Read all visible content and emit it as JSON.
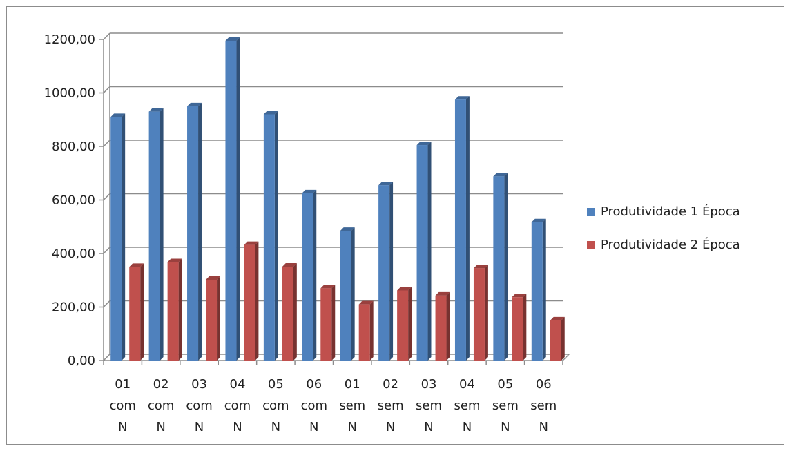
{
  "chart_data": {
    "type": "bar",
    "categories": [
      [
        "01",
        "com",
        "N"
      ],
      [
        "02",
        "com",
        "N"
      ],
      [
        "03",
        "com",
        "N"
      ],
      [
        "04",
        "com",
        "N"
      ],
      [
        "05",
        "com",
        "N"
      ],
      [
        "06",
        "com",
        "N"
      ],
      [
        "01",
        "sem",
        "N"
      ],
      [
        "02",
        "sem",
        "N"
      ],
      [
        "03",
        "sem",
        "N"
      ],
      [
        "04",
        "sem",
        "N"
      ],
      [
        "05",
        "sem",
        "N"
      ],
      [
        "06",
        "sem",
        "N"
      ]
    ],
    "series": [
      {
        "name": "Produtividade 1 Época",
        "color": "#4f81bd",
        "values": [
          910,
          930,
          950,
          1195,
          920,
          625,
          485,
          655,
          805,
          975,
          688,
          517
        ]
      },
      {
        "name": "Produtividade 2 Época",
        "color": "#c0504d",
        "values": [
          350,
          368,
          302,
          432,
          351,
          270,
          210,
          262,
          243,
          345,
          237,
          150
        ]
      }
    ],
    "ylim": [
      0,
      1200
    ],
    "yticks": [
      "0,00",
      "200,00",
      "400,00",
      "600,00",
      "800,00",
      "1000,00",
      "1200,00"
    ],
    "ytick_values": [
      0,
      200,
      400,
      600,
      800,
      1000,
      1200
    ],
    "grid": true,
    "legend_position": "right",
    "title": "",
    "xlabel": "",
    "ylabel": ""
  }
}
